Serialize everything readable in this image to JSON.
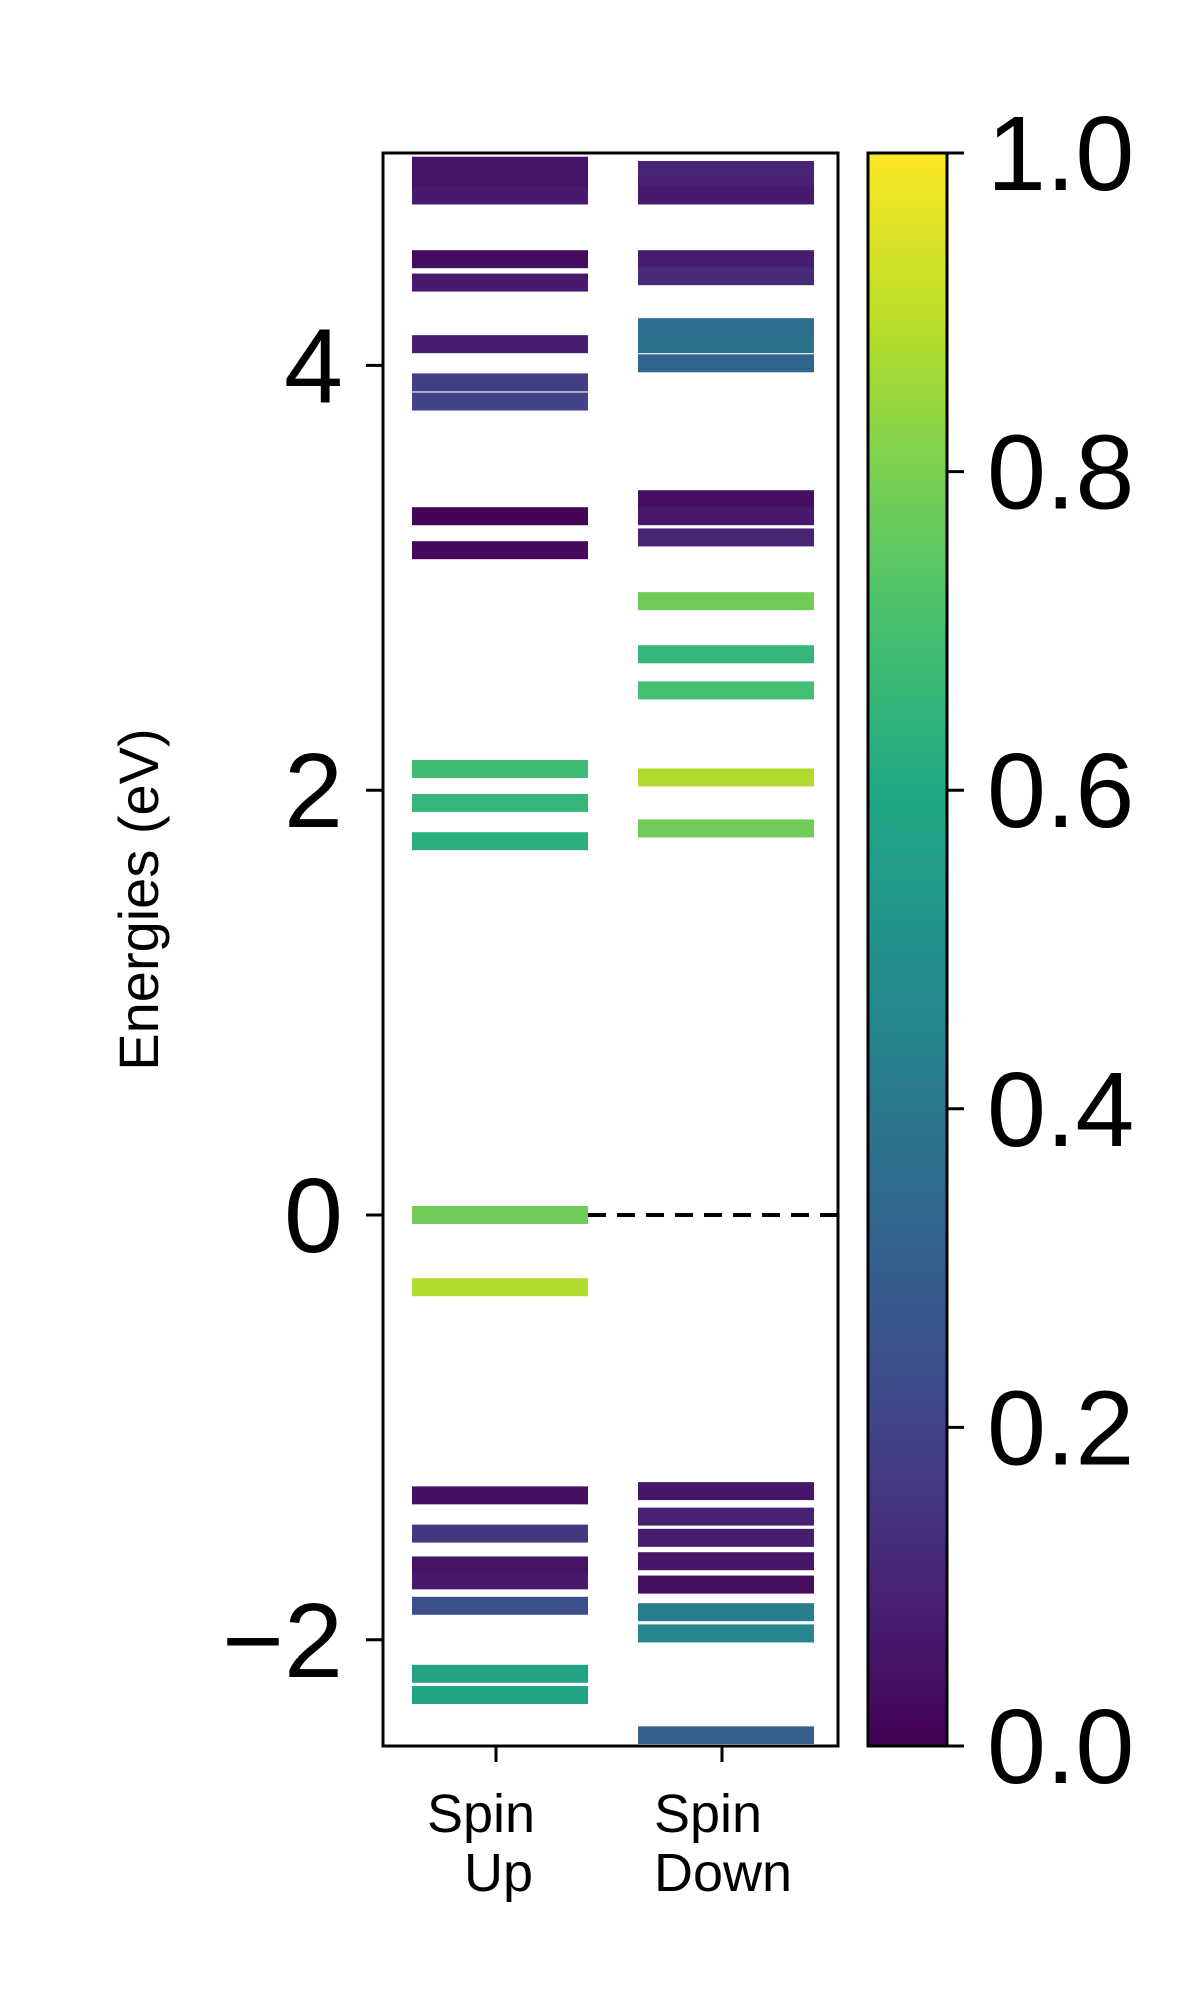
{
  "chart_data": {
    "type": "bar",
    "ylabel": "Energies (eV)",
    "ylim": [
      -2.5,
      5.0
    ],
    "yticks": [
      -2,
      0,
      2,
      4
    ],
    "ytick_labels": [
      "−2",
      "0",
      "2",
      "4"
    ],
    "fermi_level": 0,
    "categories": [
      {
        "line1": "Spin",
        "line2": "Up"
      },
      {
        "line1": "Spin",
        "line2": "Down"
      }
    ],
    "colorbar": {
      "range": [
        0.0,
        1.0
      ],
      "ticks": [
        0.0,
        0.2,
        0.4,
        0.6,
        0.8,
        1.0
      ],
      "tick_labels": [
        "0.0",
        "0.2",
        "0.4",
        "0.6",
        "0.8",
        "1.0"
      ],
      "colormap": "viridis"
    },
    "series": [
      {
        "levels": [
          {
            "energy": 4.94,
            "value": 0.05
          },
          {
            "energy": 4.9,
            "value": 0.06
          },
          {
            "energy": 4.86,
            "value": 0.05
          },
          {
            "energy": 4.8,
            "value": 0.07
          },
          {
            "energy": 4.5,
            "value": 0.03
          },
          {
            "energy": 4.39,
            "value": 0.07
          },
          {
            "energy": 4.1,
            "value": 0.08
          },
          {
            "energy": 3.92,
            "value": 0.18
          },
          {
            "energy": 3.83,
            "value": 0.2
          },
          {
            "energy": 3.29,
            "value": 0.01
          },
          {
            "energy": 3.13,
            "value": 0.02
          },
          {
            "energy": 2.1,
            "value": 0.68
          },
          {
            "energy": 1.94,
            "value": 0.66
          },
          {
            "energy": 1.76,
            "value": 0.63
          },
          {
            "energy": 0.0,
            "value": 0.78
          },
          {
            "energy": -0.34,
            "value": 0.88
          },
          {
            "energy": -1.32,
            "value": 0.04
          },
          {
            "energy": -1.5,
            "value": 0.16
          },
          {
            "energy": -1.65,
            "value": 0.05
          },
          {
            "energy": -1.72,
            "value": 0.07
          },
          {
            "energy": -1.84,
            "value": 0.24
          },
          {
            "energy": -2.16,
            "value": 0.58
          },
          {
            "energy": -2.26,
            "value": 0.58
          }
        ]
      },
      {
        "levels": [
          {
            "energy": 4.92,
            "value": 0.1
          },
          {
            "energy": 4.85,
            "value": 0.09
          },
          {
            "energy": 4.8,
            "value": 0.07
          },
          {
            "energy": 4.5,
            "value": 0.08
          },
          {
            "energy": 4.42,
            "value": 0.12
          },
          {
            "energy": 4.18,
            "value": 0.35
          },
          {
            "energy": 4.1,
            "value": 0.38
          },
          {
            "energy": 4.01,
            "value": 0.32
          },
          {
            "energy": 3.37,
            "value": 0.04
          },
          {
            "energy": 3.29,
            "value": 0.07
          },
          {
            "energy": 3.19,
            "value": 0.1
          },
          {
            "energy": 2.89,
            "value": 0.78
          },
          {
            "energy": 2.64,
            "value": 0.66
          },
          {
            "energy": 2.47,
            "value": 0.7
          },
          {
            "energy": 2.06,
            "value": 0.88
          },
          {
            "energy": 1.82,
            "value": 0.78
          },
          {
            "energy": -1.3,
            "value": 0.06
          },
          {
            "energy": -1.42,
            "value": 0.09
          },
          {
            "energy": -1.52,
            "value": 0.08
          },
          {
            "energy": -1.63,
            "value": 0.06
          },
          {
            "energy": -1.74,
            "value": 0.04
          },
          {
            "energy": -1.87,
            "value": 0.42
          },
          {
            "energy": -1.97,
            "value": 0.45
          },
          {
            "energy": -2.45,
            "value": 0.3
          }
        ]
      }
    ]
  }
}
